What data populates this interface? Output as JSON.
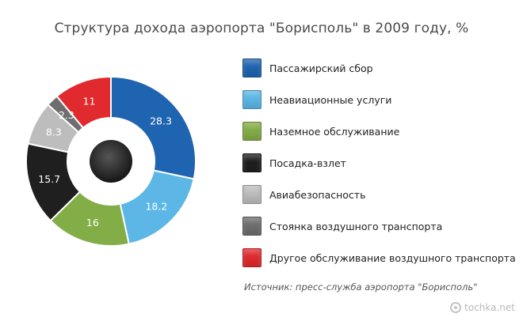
{
  "chart_data": {
    "type": "pie",
    "title": "Структура дохода аэропорта \"Борисполь\" в 2009 году, %",
    "categories": [
      "Пассажирский сбор",
      "Неавиационные услуги",
      "Наземное обслуживание",
      "Посадка-взлет",
      "Авиабезопасность",
      "Стоянка воздушного транспорта",
      "Другое обслуживание воздушного транспорта"
    ],
    "values": [
      28.3,
      18.2,
      16,
      15.7,
      8.3,
      2.3,
      11
    ],
    "value_labels": [
      "28.3",
      "18.2",
      "16",
      "15.7",
      "8.3",
      "2.3",
      "11"
    ],
    "colors": [
      "#1f64b0",
      "#5cb7e6",
      "#83ad47",
      "#1f1f1f",
      "#bdbdbd",
      "#6e6e6e",
      "#e02a2e"
    ],
    "donut": true,
    "legend_position": "right"
  },
  "source": "Источник: пресс-служба аэропорта \"Борисполь\"",
  "watermark": "tochka.net"
}
